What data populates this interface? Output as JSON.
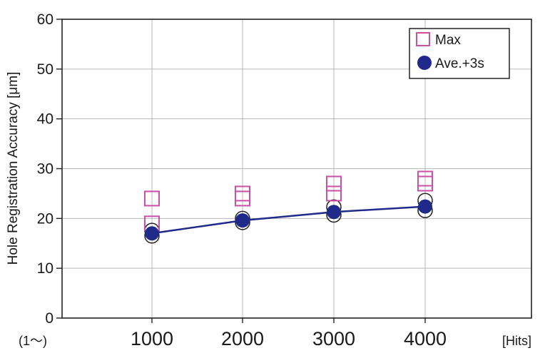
{
  "chart_data": {
    "type": "scatter",
    "title": "",
    "ylabel": "Hole Registration Accuracy [μm]",
    "xlabel": "[Hits]",
    "x_start_note": "(1〜)",
    "categories": [
      "1000",
      "2000",
      "3000",
      "4000"
    ],
    "x": [
      1000,
      2000,
      3000,
      4000
    ],
    "ylim": [
      0,
      60
    ],
    "yticks": [
      "0",
      "10",
      "20",
      "30",
      "40",
      "50",
      "60"
    ],
    "grid": true,
    "legend_position": "top-right",
    "series": [
      {
        "name": "Max",
        "marker": "hollow-square",
        "color": "#cc4fa8",
        "points": [
          {
            "x": 1000,
            "y": 24
          },
          {
            "x": 1000,
            "y": 19
          },
          {
            "x": 2000,
            "y": 25
          },
          {
            "x": 2000,
            "y": 24
          },
          {
            "x": 3000,
            "y": 27
          },
          {
            "x": 3000,
            "y": 25
          },
          {
            "x": 4000,
            "y": 28
          },
          {
            "x": 4000,
            "y": 27
          }
        ]
      },
      {
        "name": "Ave.+3s",
        "marker": "filled-circle",
        "color": "#1f2a8a",
        "line": true,
        "points": [
          {
            "x": 1000,
            "y": 17
          },
          {
            "x": 2000,
            "y": 19.6
          },
          {
            "x": 3000,
            "y": 21.3
          },
          {
            "x": 4000,
            "y": 22.4
          }
        ]
      },
      {
        "name": "",
        "marker": "hollow-circle",
        "color": "#222222",
        "points": [
          {
            "x": 1000,
            "y": 16.5
          },
          {
            "x": 1000,
            "y": 17.6
          },
          {
            "x": 2000,
            "y": 19.2
          },
          {
            "x": 2000,
            "y": 20.0
          },
          {
            "x": 3000,
            "y": 20.7
          },
          {
            "x": 3000,
            "y": 22.3
          },
          {
            "x": 4000,
            "y": 21.6
          },
          {
            "x": 4000,
            "y": 23.6
          }
        ]
      }
    ]
  }
}
